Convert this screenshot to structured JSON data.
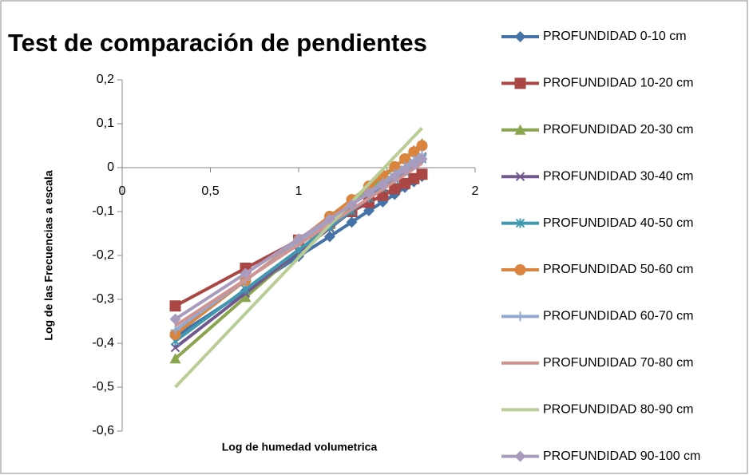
{
  "chart_data": {
    "type": "line",
    "title": "Test de comparación de pendientes",
    "xlabel": "Log  de humedad volumetrica",
    "ylabel": "Log de las Frecuencias a escala",
    "x": [
      0.301,
      0.699,
      1,
      1.176,
      1.301,
      1.398,
      1.477,
      1.544,
      1.602,
      1.653,
      1.699
    ],
    "xlim": [
      0,
      2
    ],
    "xticks": [
      0,
      {
        "value": 0.5,
        "label": "0,5"
      },
      1,
      {
        "value": 1.5,
        "label": "1,5"
      },
      2
    ],
    "ylim": [
      -0.6,
      0.2
    ],
    "yticks": [
      {
        "value": 0.2,
        "label": "0,2"
      },
      {
        "value": 0.1,
        "label": "0,1"
      },
      0,
      {
        "value": -0.1,
        "label": "-0,1"
      },
      {
        "value": -0.2,
        "label": "-0,2"
      },
      {
        "value": -0.3,
        "label": "-0,3"
      },
      {
        "value": -0.4,
        "label": "-0,4"
      },
      {
        "value": -0.5,
        "label": "-0,5"
      },
      {
        "value": -0.6,
        "label": "-0,6"
      }
    ],
    "legend": "right",
    "series": [
      {
        "name": "PROFUNDIDAD  0-10 cm",
        "color": "#4572a7",
        "marker": "diamond",
        "values": [
          -0.385,
          -0.281,
          -0.202,
          -0.157,
          -0.124,
          -0.098,
          -0.078,
          -0.061,
          -0.045,
          -0.032,
          -0.02
        ]
      },
      {
        "name": "PROFUNDIDAD  10-20 cm",
        "color": "#aa4643",
        "marker": "square",
        "values": [
          -0.315,
          -0.229,
          -0.165,
          -0.127,
          -0.1,
          -0.079,
          -0.063,
          -0.048,
          -0.036,
          -0.025,
          -0.015
        ]
      },
      {
        "name": "PROFUNDIDAD  20-30 cm",
        "color": "#89a54e",
        "marker": "triangle",
        "values": [
          -0.435,
          -0.295,
          -0.19,
          -0.128,
          -0.085,
          -0.05,
          -0.023,
          0.001,
          0.021,
          0.039,
          0.055
        ]
      },
      {
        "name": "PROFUNDIDAD  30-40 cm",
        "color": "#71588f",
        "marker": "x",
        "values": [
          -0.41,
          -0.286,
          -0.192,
          -0.138,
          -0.099,
          -0.069,
          -0.044,
          -0.023,
          -0.005,
          0.011,
          0.025
        ]
      },
      {
        "name": "PROFUNDIDAD  40-50 cm",
        "color": "#4198af",
        "marker": "asterisk",
        "values": [
          -0.395,
          -0.277,
          -0.187,
          -0.135,
          -0.098,
          -0.069,
          -0.046,
          -0.026,
          -0.009,
          0.006,
          0.02
        ]
      },
      {
        "name": "PROFUNDIDAD  50-60 cm",
        "color": "#db843d",
        "marker": "circle",
        "values": [
          -0.38,
          -0.257,
          -0.165,
          -0.111,
          -0.073,
          -0.042,
          -0.018,
          0.002,
          0.02,
          0.036,
          0.05
        ]
      },
      {
        "name": "PROFUNDIDAD  60-70 cm",
        "color": "#93a9cf",
        "marker": "plus",
        "values": [
          -0.37,
          -0.256,
          -0.17,
          -0.12,
          -0.084,
          -0.056,
          -0.034,
          -0.014,
          0.002,
          0.017,
          0.03
        ]
      },
      {
        "name": "PROFUNDIDAD  70-80 cm",
        "color": "#d19392",
        "marker": "none",
        "values": [
          -0.36,
          -0.255,
          -0.175,
          -0.128,
          -0.095,
          -0.07,
          -0.049,
          -0.031,
          -0.016,
          -0.002,
          0.01
        ]
      },
      {
        "name": "PROFUNDIDAD  80-90 cm",
        "color": "#b9cd96",
        "marker": "none",
        "values": [
          -0.5,
          -0.332,
          -0.205,
          -0.131,
          -0.078,
          -0.037,
          -0.004,
          0.025,
          0.049,
          0.071,
          0.09
        ]
      },
      {
        "name": "PROFUNDIDAD  90-100 cm",
        "color": "#a99bbd",
        "marker": "diamond",
        "values": [
          -0.345,
          -0.241,
          -0.162,
          -0.117,
          -0.084,
          -0.058,
          -0.038,
          -0.021,
          -0.005,
          0.008,
          0.02
        ]
      }
    ]
  }
}
